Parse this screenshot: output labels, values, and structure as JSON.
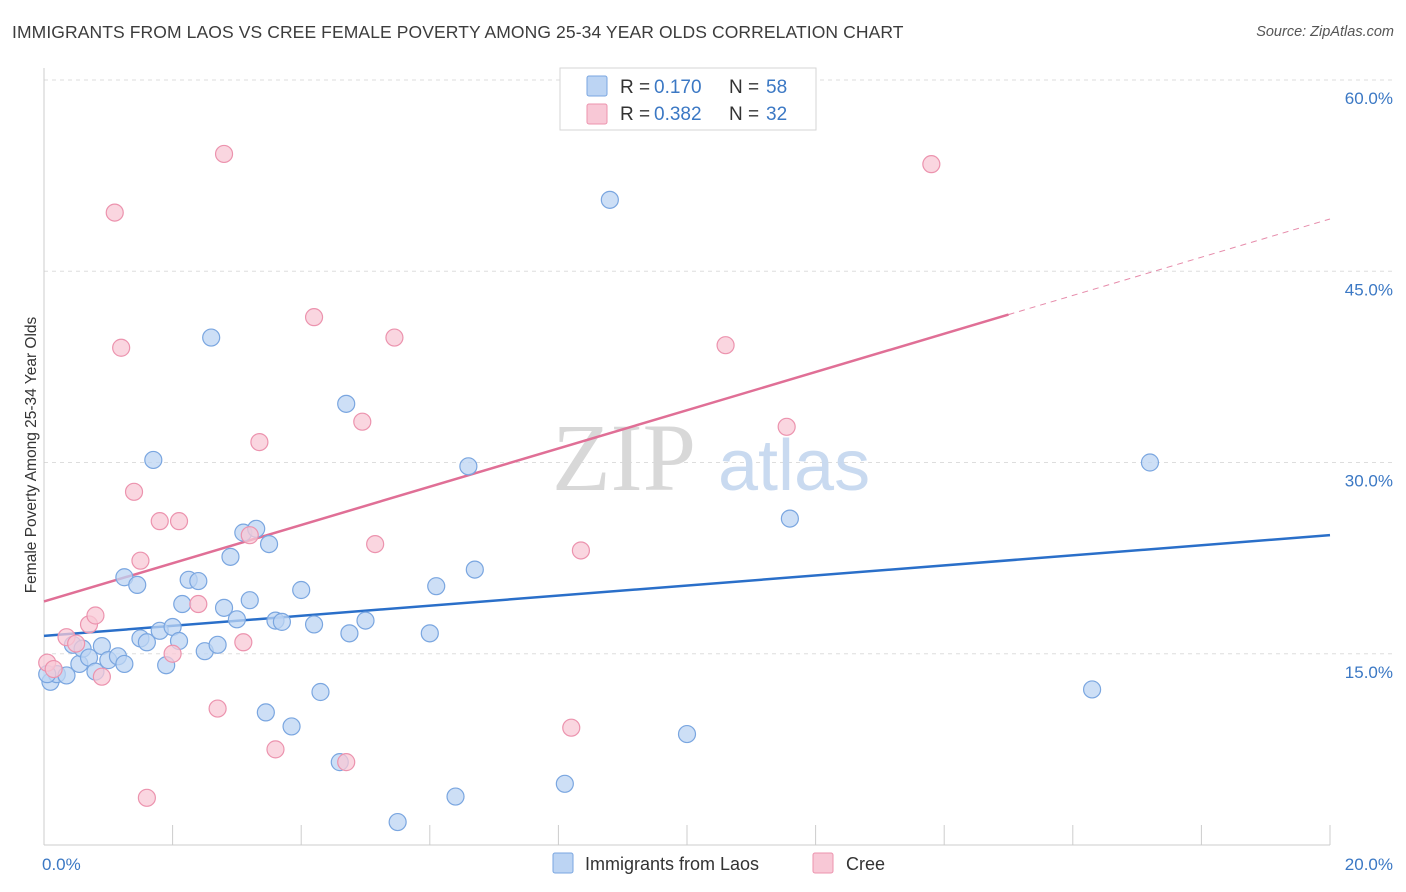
{
  "title": "IMMIGRANTS FROM LAOS VS CREE FEMALE POVERTY AMONG 25-34 YEAR OLDS CORRELATION CHART",
  "source": "Source: ZipAtlas.com",
  "watermark": {
    "zip": "ZIP",
    "atlas": "atlas"
  },
  "colors": {
    "blue_fill": "#bcd4f3",
    "blue_stroke": "#7aa6e0",
    "blue_line": "#2a6fc9",
    "pink_fill": "#f8c8d6",
    "pink_stroke": "#ec93ae",
    "pink_line": "#e06f96",
    "grid": "#dddddd",
    "tick_text": "#3b78c4"
  },
  "legend": {
    "r_label": "R =",
    "n_label": "N =",
    "rows": [
      {
        "r": "0.170",
        "n": "58"
      },
      {
        "r": "0.382",
        "n": "32"
      }
    ]
  },
  "bottom_legend": [
    "Immigrants from Laos",
    "Cree"
  ],
  "chart_data": {
    "type": "scatter",
    "ylabel": "Female Poverty Among 25-34 Year Olds",
    "xlim": [
      0,
      20
    ],
    "ylim": [
      0,
      60
    ],
    "x_tick_labels": [
      {
        "value": 0,
        "label": "0.0%"
      },
      {
        "value": 20,
        "label": "20.0%"
      }
    ],
    "y_tick_labels": [
      {
        "value": 15,
        "label": "15.0%"
      },
      {
        "value": 30,
        "label": "30.0%"
      },
      {
        "value": 45,
        "label": "45.0%"
      },
      {
        "value": 60,
        "label": "60.0%"
      }
    ],
    "x_minor_ticks": [
      0,
      2,
      4,
      6,
      8,
      10,
      12,
      14,
      16,
      18,
      20
    ],
    "grid": true,
    "series": [
      {
        "name": "Immigrants from Laos",
        "r": 0.17,
        "n": 58,
        "trend": {
          "x": [
            0,
            20
          ],
          "y": [
            16.4,
            24.3
          ]
        },
        "points": [
          [
            0.1,
            12.8
          ],
          [
            0.2,
            13.4
          ],
          [
            0.35,
            13.3
          ],
          [
            0.45,
            15.7
          ],
          [
            0.55,
            14.2
          ],
          [
            0.6,
            15.4
          ],
          [
            0.7,
            14.7
          ],
          [
            0.8,
            13.6
          ],
          [
            0.9,
            15.6
          ],
          [
            1.0,
            14.5
          ],
          [
            1.15,
            14.8
          ],
          [
            1.25,
            14.2
          ],
          [
            1.25,
            21.0
          ],
          [
            1.45,
            20.4
          ],
          [
            1.5,
            16.2
          ],
          [
            1.6,
            15.9
          ],
          [
            1.7,
            30.2
          ],
          [
            1.8,
            16.8
          ],
          [
            1.9,
            14.1
          ],
          [
            2.0,
            17.1
          ],
          [
            2.1,
            16.0
          ],
          [
            2.15,
            18.9
          ],
          [
            2.25,
            20.8
          ],
          [
            2.4,
            20.7
          ],
          [
            2.5,
            15.2
          ],
          [
            2.6,
            39.8
          ],
          [
            2.7,
            15.7
          ],
          [
            2.8,
            18.6
          ],
          [
            2.9,
            22.6
          ],
          [
            3.0,
            17.7
          ],
          [
            3.1,
            24.5
          ],
          [
            3.2,
            19.2
          ],
          [
            3.3,
            24.8
          ],
          [
            3.45,
            10.4
          ],
          [
            3.5,
            23.6
          ],
          [
            3.6,
            17.6
          ],
          [
            3.7,
            17.5
          ],
          [
            3.85,
            9.3
          ],
          [
            4.0,
            20.0
          ],
          [
            4.2,
            17.3
          ],
          [
            4.3,
            12.0
          ],
          [
            4.6,
            6.5
          ],
          [
            4.7,
            34.6
          ],
          [
            4.75,
            16.6
          ],
          [
            5.0,
            17.6
          ],
          [
            5.5,
            1.8
          ],
          [
            6.0,
            16.6
          ],
          [
            6.1,
            20.3
          ],
          [
            6.4,
            3.8
          ],
          [
            6.6,
            29.7
          ],
          [
            6.7,
            21.6
          ],
          [
            8.1,
            4.8
          ],
          [
            8.8,
            50.6
          ],
          [
            10.0,
            8.7
          ],
          [
            11.6,
            25.6
          ],
          [
            16.3,
            12.2
          ],
          [
            17.2,
            30.0
          ],
          [
            0.05,
            13.4
          ]
        ]
      },
      {
        "name": "Cree",
        "r": 0.382,
        "n": 32,
        "trend": {
          "x": [
            0,
            15
          ],
          "y": [
            19.1,
            41.6
          ]
        },
        "trend_dashed": {
          "x": [
            15,
            20
          ],
          "y": [
            41.6,
            49.1
          ]
        },
        "points": [
          [
            0.05,
            14.3
          ],
          [
            0.15,
            13.8
          ],
          [
            0.35,
            16.3
          ],
          [
            0.5,
            15.8
          ],
          [
            0.7,
            17.3
          ],
          [
            0.8,
            18.0
          ],
          [
            0.9,
            13.2
          ],
          [
            1.1,
            49.6
          ],
          [
            1.2,
            39.0
          ],
          [
            1.4,
            27.7
          ],
          [
            1.5,
            22.3
          ],
          [
            1.6,
            3.7
          ],
          [
            1.8,
            25.4
          ],
          [
            2.0,
            15.0
          ],
          [
            2.1,
            25.4
          ],
          [
            2.4,
            18.9
          ],
          [
            2.7,
            10.7
          ],
          [
            2.8,
            54.2
          ],
          [
            3.1,
            15.9
          ],
          [
            3.2,
            24.3
          ],
          [
            3.35,
            31.6
          ],
          [
            3.6,
            7.5
          ],
          [
            4.2,
            41.4
          ],
          [
            4.7,
            6.5
          ],
          [
            4.95,
            33.2
          ],
          [
            5.15,
            23.6
          ],
          [
            5.45,
            39.8
          ],
          [
            8.2,
            9.2
          ],
          [
            8.35,
            23.1
          ],
          [
            10.6,
            39.2
          ],
          [
            11.55,
            32.8
          ],
          [
            13.8,
            53.4
          ]
        ]
      }
    ]
  }
}
